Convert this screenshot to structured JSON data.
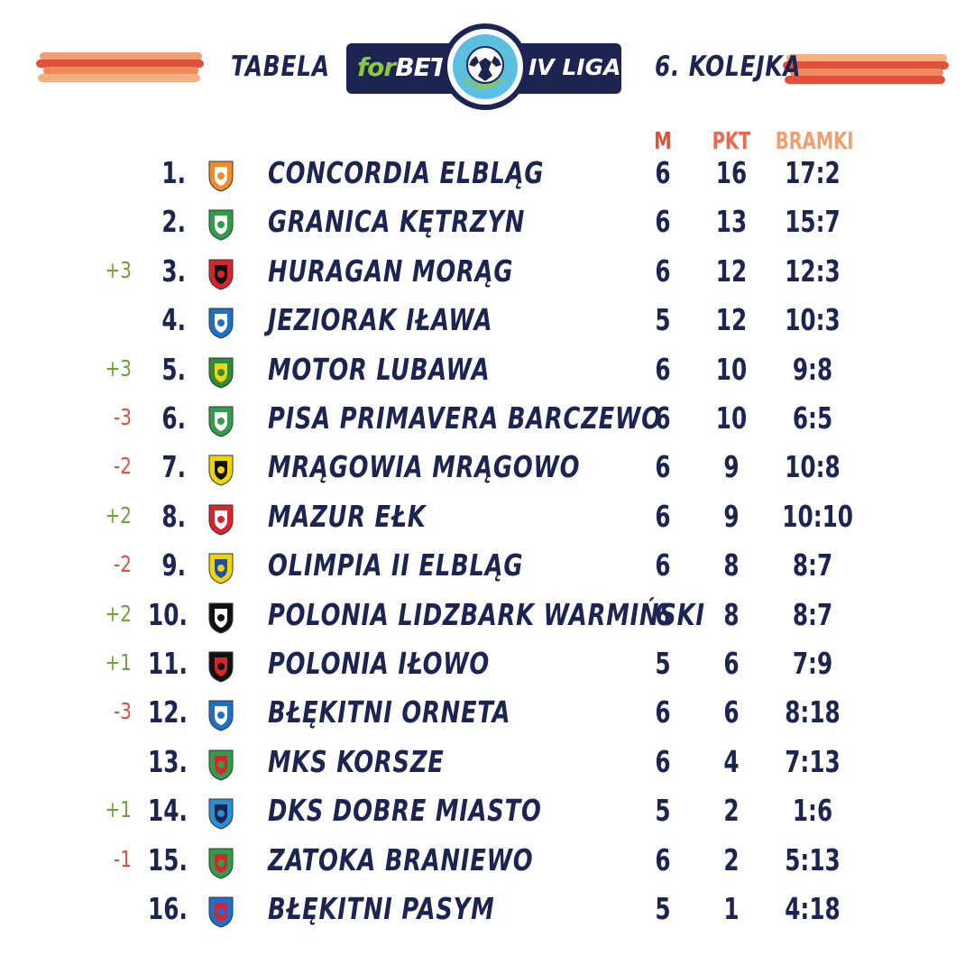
{
  "header": {
    "left_title": "TABELA",
    "right_title": "6. KOLEJKA",
    "logo_prefix": "for",
    "logo_brand": "BET",
    "logo_league": "IV LIGA",
    "accent_dark": "#1c2452",
    "accent_red": "#e0503c",
    "accent_orange": "#f0a070"
  },
  "columns": {
    "m": "M",
    "pkt": "PKT",
    "bramki": "BRAMKI"
  },
  "rows": [
    {
      "change": "",
      "pos": "1.",
      "team": "CONCORDIA ELBLĄG",
      "m": "6",
      "pkt": "16",
      "goals": "17:2",
      "crest": "concordia-crest-icon",
      "c1": "#f08a2a",
      "c2": "#ffffff"
    },
    {
      "change": "",
      "pos": "2.",
      "team": "GRANICA KĘTRZYN",
      "m": "6",
      "pkt": "13",
      "goals": "15:7",
      "crest": "granica-crest-icon",
      "c1": "#2e9e4a",
      "c2": "#ffffff"
    },
    {
      "change": "+3",
      "pos": "3.",
      "team": "HURAGAN MORĄG",
      "m": "6",
      "pkt": "12",
      "goals": "12:3",
      "crest": "huragan-crest-icon",
      "c1": "#d9232d",
      "c2": "#111111"
    },
    {
      "change": "",
      "pos": "4.",
      "team": "JEZIORAK IŁAWA",
      "m": "5",
      "pkt": "12",
      "goals": "10:3",
      "crest": "jeziorak-crest-icon",
      "c1": "#1e6fc6",
      "c2": "#ffffff"
    },
    {
      "change": "+3",
      "pos": "5.",
      "team": "MOTOR LUBAWA",
      "m": "6",
      "pkt": "10",
      "goals": "9:8",
      "crest": "motor-crest-icon",
      "c1": "#2e8b3a",
      "c2": "#f2d400"
    },
    {
      "change": "-3",
      "pos": "6.",
      "team": "PISA PRIMAVERA BARCZEWO",
      "m": "6",
      "pkt": "10",
      "goals": "6:5",
      "crest": "pisa-crest-icon",
      "c1": "#2e9e4a",
      "c2": "#ffffff"
    },
    {
      "change": "-2",
      "pos": "7.",
      "team": "MRĄGOWIA MRĄGOWO",
      "m": "6",
      "pkt": "9",
      "goals": "10:8",
      "crest": "mragowia-crest-icon",
      "c1": "#f2d400",
      "c2": "#111111"
    },
    {
      "change": "+2",
      "pos": "8.",
      "team": "MAZUR EŁK",
      "m": "6",
      "pkt": "9",
      "goals": "10:10",
      "crest": "mazur-crest-icon",
      "c1": "#d9232d",
      "c2": "#ffffff"
    },
    {
      "change": "-2",
      "pos": "9.",
      "team": "OLIMPIA II ELBLĄG",
      "m": "6",
      "pkt": "8",
      "goals": "8:7",
      "crest": "olimpia-crest-icon",
      "c1": "#f2d400",
      "c2": "#1e4fa8"
    },
    {
      "change": "+2",
      "pos": "10.",
      "team": "POLONIA LIDZBARK WARMIŃSKI",
      "m": "6",
      "pkt": "8",
      "goals": "8:7",
      "crest": "polonia-lidzbark-crest-icon",
      "c1": "#111111",
      "c2": "#ffffff"
    },
    {
      "change": "+1",
      "pos": "11.",
      "team": "POLONIA IŁOWO",
      "m": "5",
      "pkt": "6",
      "goals": "7:9",
      "crest": "polonia-ilowo-crest-icon",
      "c1": "#111111",
      "c2": "#d9232d"
    },
    {
      "change": "-3",
      "pos": "12.",
      "team": "BŁĘKITNI ORNETA",
      "m": "6",
      "pkt": "6",
      "goals": "8:18",
      "crest": "blekitni-orneta-crest-icon",
      "c1": "#1e6fc6",
      "c2": "#ffffff"
    },
    {
      "change": "",
      "pos": "13.",
      "team": "MKS KORSZE",
      "m": "6",
      "pkt": "4",
      "goals": "7:13",
      "crest": "mks-korsze-crest-icon",
      "c1": "#2e9e4a",
      "c2": "#d9232d"
    },
    {
      "change": "+1",
      "pos": "14.",
      "team": "DKS DOBRE MIASTO",
      "m": "5",
      "pkt": "2",
      "goals": "1:6",
      "crest": "dks-crest-icon",
      "c1": "#2a8fd0",
      "c2": "#1c2452"
    },
    {
      "change": "-1",
      "pos": "15.",
      "team": "ZATOKA BRANIEWO",
      "m": "6",
      "pkt": "2",
      "goals": "5:13",
      "crest": "zatoka-crest-icon",
      "c1": "#2e9e4a",
      "c2": "#d9232d"
    },
    {
      "change": "",
      "pos": "16.",
      "team": "BŁĘKITNI PASYM",
      "m": "5",
      "pkt": "1",
      "goals": "4:18",
      "crest": "blekitni-pasym-crest-icon",
      "c1": "#1e6fc6",
      "c2": "#d9232d"
    }
  ],
  "change_colors": {
    "up": "#6aa33a",
    "down": "#e0503c"
  }
}
